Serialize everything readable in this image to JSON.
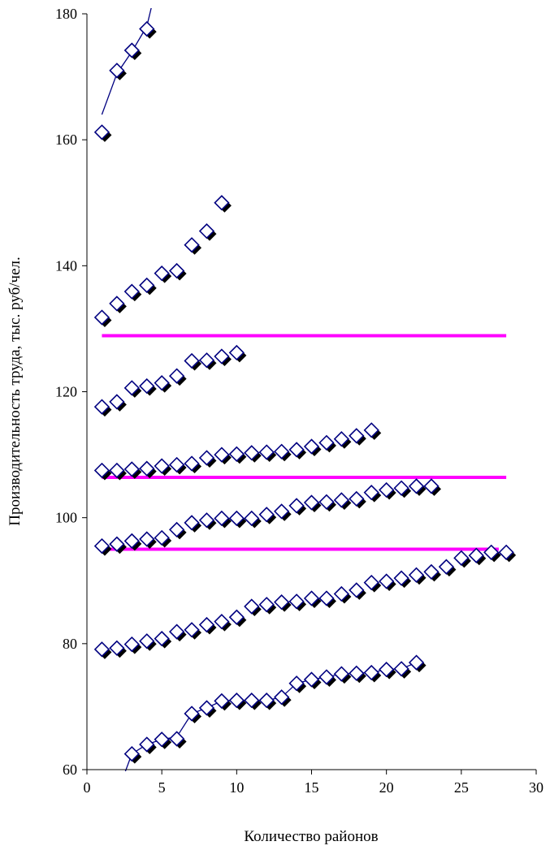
{
  "chart_data": {
    "type": "scatter",
    "title": "",
    "xlabel": "Количество районов",
    "ylabel": "Производительность труда, тыс. руб/чел.",
    "xlim": [
      0,
      30
    ],
    "ylim": [
      60,
      180
    ],
    "xticks": [
      "0",
      "5",
      "10",
      "15",
      "20",
      "25",
      "30"
    ],
    "yticks": [
      "60",
      "80",
      "100",
      "120",
      "140",
      "160",
      "180"
    ],
    "grid": false,
    "legend": "none",
    "marker_fill": "#ffffff",
    "marker_stroke": "#000080",
    "marker_shadow": "#000000",
    "line_color": "#000080",
    "threshold_color": "#ff00ff",
    "series": [
      {
        "x": [
          1,
          2,
          3,
          4
        ],
        "values": [
          161.2,
          171.0,
          174.2,
          177.6
        ],
        "curve": [
          [
            1,
            164
          ],
          [
            2,
            170.5
          ],
          [
            3,
            174
          ],
          [
            4,
            178
          ],
          [
            4.3,
            181
          ]
        ]
      },
      {
        "x": [
          1,
          2,
          3,
          4,
          5,
          6,
          7,
          8,
          9
        ],
        "values": [
          131.8,
          134.0,
          135.9,
          136.9,
          138.8,
          139.2,
          143.3,
          145.5,
          150.0
        ]
      },
      {
        "x": [
          1,
          2,
          3,
          4,
          5,
          6,
          7,
          8,
          9,
          10
        ],
        "values": [
          117.6,
          118.4,
          120.6,
          120.9,
          121.4,
          122.5,
          124.9,
          125.0,
          125.6,
          126.2
        ]
      },
      {
        "x": [
          1,
          2,
          3,
          4,
          5,
          6,
          7,
          8,
          9,
          10,
          11,
          12,
          13,
          14,
          15,
          16,
          17,
          18,
          19
        ],
        "values": [
          107.5,
          107.5,
          107.7,
          107.8,
          108.2,
          108.4,
          108.6,
          109.5,
          110.0,
          110.1,
          110.3,
          110.4,
          110.5,
          110.8,
          111.3,
          111.9,
          112.5,
          113.0,
          113.9
        ]
      },
      {
        "x": [
          1,
          2,
          3,
          4,
          5,
          6,
          7,
          8,
          9,
          10,
          11,
          12,
          13,
          14,
          15,
          16,
          17,
          18,
          19,
          20,
          21,
          22,
          23
        ],
        "values": [
          95.5,
          95.8,
          96.3,
          96.6,
          96.8,
          98.1,
          99.2,
          99.6,
          99.9,
          99.9,
          99.9,
          100.5,
          101.0,
          101.9,
          102.4,
          102.5,
          102.8,
          103.0,
          104.0,
          104.4,
          104.7,
          105.0,
          105.0
        ]
      },
      {
        "x": [
          1,
          2,
          3,
          4,
          5,
          6,
          7,
          8,
          9,
          10,
          11,
          12,
          13,
          14,
          15,
          16,
          17,
          18,
          19,
          20,
          21,
          22,
          23,
          24,
          25,
          26,
          27,
          28
        ],
        "values": [
          79.1,
          79.3,
          79.9,
          80.4,
          80.8,
          81.9,
          82.2,
          83.0,
          83.5,
          84.2,
          85.9,
          86.2,
          86.6,
          86.7,
          87.2,
          87.2,
          87.9,
          88.5,
          89.7,
          89.9,
          90.4,
          90.9,
          91.4,
          92.2,
          93.6,
          94.0,
          94.5,
          94.5
        ]
      },
      {
        "x": [
          3,
          4,
          5,
          6,
          7,
          8,
          9,
          10,
          11,
          12,
          13,
          14,
          15,
          16,
          17,
          18,
          19,
          20,
          21,
          22
        ],
        "values": [
          62.5,
          64.0,
          64.8,
          64.9,
          68.9,
          69.8,
          70.9,
          71.0,
          71.0,
          71.0,
          71.5,
          73.7,
          74.3,
          74.7,
          75.2,
          75.3,
          75.4,
          75.9,
          76.0,
          77.0
        ],
        "curve": [
          [
            2.3,
            58
          ],
          [
            3,
            62.5
          ],
          [
            4,
            64
          ],
          [
            5,
            64.8
          ],
          [
            6,
            65.2
          ],
          [
            7,
            68.9
          ],
          [
            8,
            69.8
          ],
          [
            9,
            70.9
          ],
          [
            10,
            71.0
          ],
          [
            11,
            71.0
          ],
          [
            12,
            71.0
          ],
          [
            13,
            71.5
          ],
          [
            14,
            73.7
          ],
          [
            15,
            74.3
          ],
          [
            16,
            74.7
          ],
          [
            17,
            75.2
          ],
          [
            18,
            75.3
          ],
          [
            19,
            75.4
          ],
          [
            20,
            75.9
          ],
          [
            21,
            76.0
          ],
          [
            22,
            77.0
          ]
        ]
      }
    ],
    "thresholds": [
      {
        "y": 128.9,
        "x_from": 1,
        "x_to": 28
      },
      {
        "y": 106.4,
        "x_from": 1,
        "x_to": 28
      },
      {
        "y": 95.0,
        "x_from": 1.5,
        "x_to": 27.5
      }
    ]
  }
}
